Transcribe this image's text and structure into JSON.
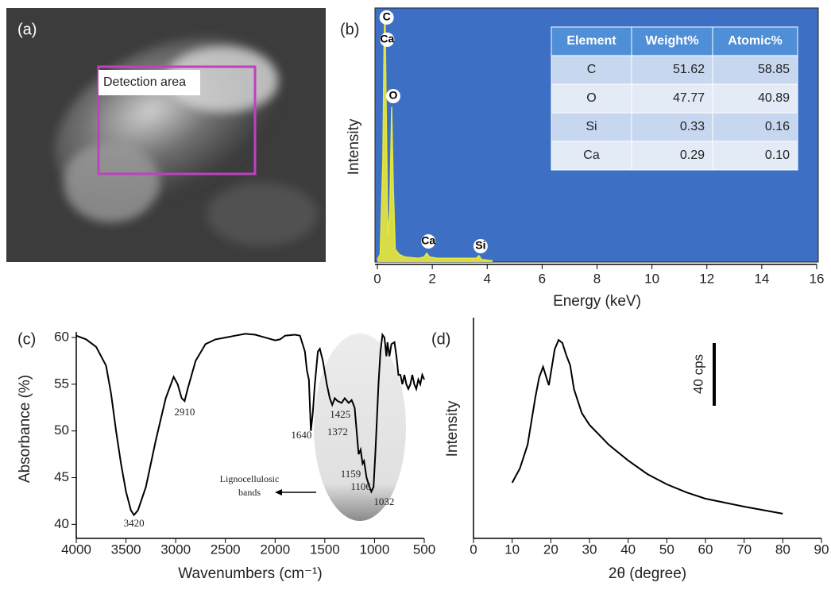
{
  "image_panel": {
    "label": "(a)",
    "annotation": "Detection area"
  },
  "chart_data": [
    {
      "type": "line",
      "panel_label": "(b)",
      "x_label": "Energy (keV)",
      "y_label": "Intensity",
      "xlim": [
        0,
        16
      ],
      "xticks": [
        0,
        2,
        4,
        6,
        8,
        10,
        12,
        14,
        16
      ],
      "ylim": [
        0,
        100
      ],
      "background": "#3d6fc4",
      "color": "#e8e83a",
      "series": [
        {
          "x": [
            0,
            0.1,
            0.2,
            0.25,
            0.28,
            0.32,
            0.38,
            0.45,
            0.52,
            0.58,
            0.65,
            0.8,
            1.0,
            1.5,
            1.7,
            1.8,
            1.9,
            2.2,
            3,
            3.6,
            3.7,
            3.8,
            4.2
          ],
          "values": [
            1,
            3,
            40,
            90,
            98,
            60,
            10,
            20,
            61,
            30,
            5,
            3,
            2,
            1.5,
            2,
            3.5,
            2,
            1.5,
            1.5,
            1.5,
            2.5,
            1,
            0.5
          ]
        }
      ],
      "peak_labels": [
        {
          "label": "C",
          "x": 0.28
        },
        {
          "label": "Ca",
          "x": 0.3
        },
        {
          "label": "O",
          "x": 0.52
        },
        {
          "label": "Ca",
          "x": 1.8
        },
        {
          "label": "Si",
          "x": 3.7
        }
      ],
      "table": {
        "header": [
          "Element",
          "Weight%",
          "Atomic%"
        ],
        "rows": [
          [
            "C",
            "51.62",
            "58.85"
          ],
          [
            "O",
            "47.77",
            "40.89"
          ],
          [
            "Si",
            "0.33",
            "0.16"
          ],
          [
            "Ca",
            "0.29",
            "0.10"
          ]
        ]
      }
    },
    {
      "type": "line",
      "panel_label": "(c)",
      "x_label": "Wavenumbers (cm⁻¹)",
      "y_label": "Absorbance (%)",
      "xlim": [
        4000,
        500
      ],
      "xticks": [
        4000,
        3500,
        3000,
        2500,
        2000,
        1500,
        1000,
        500
      ],
      "ylim": [
        38.5,
        60.6
      ],
      "yticks": [
        40,
        45,
        50,
        55,
        60
      ],
      "color": "#000000",
      "series": [
        {
          "x": [
            4000,
            3900,
            3800,
            3700,
            3650,
            3600,
            3550,
            3500,
            3450,
            3420,
            3380,
            3300,
            3200,
            3100,
            3020,
            2980,
            2940,
            2910,
            2880,
            2800,
            2700,
            2600,
            2500,
            2400,
            2300,
            2200,
            2100,
            2000,
            1950,
            1900,
            1800,
            1750,
            1700,
            1680,
            1660,
            1640,
            1620,
            1600,
            1570,
            1550,
            1520,
            1480,
            1450,
            1425,
            1400,
            1372,
            1330,
            1300,
            1260,
            1230,
            1200,
            1160,
            1140,
            1120,
            1106,
            1080,
            1050,
            1032,
            1010,
            990,
            960,
            940,
            920,
            900,
            880,
            870,
            850,
            830,
            800,
            780,
            760,
            740,
            720,
            700,
            680,
            660,
            640,
            620,
            600,
            580,
            560,
            540,
            520,
            500
          ],
          "values": [
            60.2,
            59.8,
            59,
            57,
            54,
            50,
            46.5,
            43.5,
            41.5,
            41,
            41.5,
            44,
            49,
            53.5,
            55.8,
            55,
            53.5,
            53.2,
            54.5,
            57.5,
            59.3,
            59.8,
            60,
            60.2,
            60.4,
            60.3,
            60,
            59.7,
            59.8,
            60.2,
            60.3,
            60.2,
            58.5,
            56.5,
            55.5,
            50,
            52,
            55,
            58.5,
            58.8,
            57.5,
            55,
            53.5,
            52.8,
            53.5,
            53.2,
            53,
            53.5,
            53,
            53.3,
            52.5,
            47.5,
            48,
            46.5,
            46.8,
            45,
            44,
            43.5,
            44,
            48,
            55,
            58.5,
            60.3,
            60,
            58,
            59.5,
            58,
            59.3,
            59.5,
            58,
            56,
            56,
            55,
            56,
            55,
            54.5,
            55,
            56,
            55,
            54.5,
            55.5,
            55,
            56,
            55.5
          ]
        }
      ],
      "peaks": [
        3420,
        2910,
        1640,
        1425,
        1372,
        1159,
        1106,
        1032
      ],
      "band_annotation": [
        "Lignocellulosic",
        "bands"
      ]
    },
    {
      "type": "line",
      "panel_label": "(d)",
      "x_label": "2θ (degree)",
      "y_label": "Intensity",
      "xlim": [
        0,
        90
      ],
      "xticks": [
        0,
        10,
        20,
        30,
        40,
        50,
        60,
        70,
        80,
        90
      ],
      "ylim": [
        0,
        100
      ],
      "color": "#000000",
      "series": [
        {
          "x": [
            10,
            12,
            14,
            16,
            17,
            18,
            19,
            19.5,
            20,
            21,
            22,
            23,
            24,
            25,
            26,
            28,
            30,
            35,
            40,
            45,
            50,
            55,
            60,
            70,
            80
          ],
          "values": [
            25.2,
            31.7,
            42.4,
            64,
            73,
            77.7,
            72,
            69.4,
            74.8,
            85.6,
            89.9,
            88.5,
            83,
            78.4,
            67.6,
            56.8,
            51.4,
            42.4,
            35.3,
            29.1,
            24.5,
            20.9,
            18,
            14.4,
            11.2
          ]
        }
      ],
      "scale_bar": "40 cps"
    }
  ]
}
